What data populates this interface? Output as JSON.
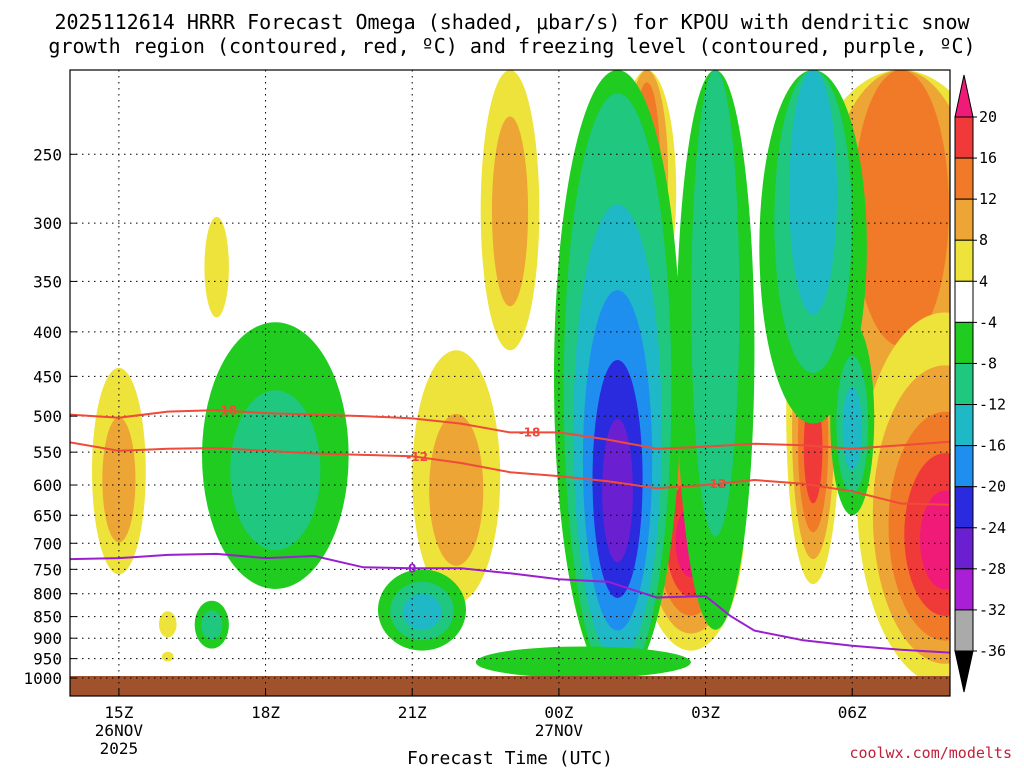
{
  "chart_data": {
    "type": "heatmap",
    "title_line1": "2025112614 HRRR Forecast Omega (shaded, μbar/s) for KPOU with dendritic snow",
    "title_line2": "growth region (contoured, red, ºC) and freezing level (contoured, purple, ºC)",
    "xlabel": "Forecast Time (UTC)",
    "credit": "coolwx.com/modelts",
    "y_ticks": [
      250,
      300,
      350,
      400,
      450,
      500,
      550,
      600,
      650,
      700,
      750,
      800,
      850,
      900,
      950,
      1000
    ],
    "x_ticks": [
      {
        "hour": 15,
        "label": "15Z",
        "date": "26NOV",
        "year": "2025"
      },
      {
        "hour": 18,
        "label": "18Z",
        "date": "",
        "year": ""
      },
      {
        "hour": 21,
        "label": "21Z",
        "date": "",
        "year": ""
      },
      {
        "hour": 24,
        "label": "00Z",
        "date": "27NOV",
        "year": ""
      },
      {
        "hour": 27,
        "label": "03Z",
        "date": "",
        "year": ""
      },
      {
        "hour": 30,
        "label": "06Z",
        "date": "",
        "year": ""
      }
    ],
    "xlim": [
      14,
      32
    ],
    "ylim": [
      1000,
      200
    ],
    "y_scale": "log-pressure",
    "grid": true,
    "colorbar": {
      "labels": [
        "20",
        "16",
        "12",
        "8",
        "4",
        "-4",
        "-8",
        "-12",
        "-16",
        "-20",
        "-24",
        "-28",
        "-32",
        "-36"
      ],
      "colors": [
        "#f01a78",
        "#f03a3a",
        "#f07a28",
        "#eda535",
        "#ede33a",
        "#ffffff",
        "#1fcc1f",
        "#1fc77f",
        "#1fb8c7",
        "#1f8fef",
        "#2a2adf",
        "#6a1fd1",
        "#a81fd6",
        "#aaaaaa"
      ]
    },
    "dgz_contours": [
      {
        "label": "-18",
        "color": "#f04a3a",
        "points": [
          [
            14,
            498
          ],
          [
            15,
            502
          ],
          [
            16,
            494
          ],
          [
            17,
            492
          ],
          [
            18,
            496
          ],
          [
            19,
            498
          ],
          [
            20,
            500
          ],
          [
            21,
            503
          ],
          [
            22,
            510
          ],
          [
            23,
            522
          ],
          [
            24,
            522
          ],
          [
            25,
            532
          ],
          [
            26,
            545
          ],
          [
            27,
            542
          ],
          [
            28,
            538
          ],
          [
            29,
            540
          ],
          [
            30,
            545
          ],
          [
            31,
            540
          ],
          [
            32,
            535
          ]
        ]
      },
      {
        "label": "-12",
        "color": "#f04a3a",
        "points": [
          [
            14,
            536
          ],
          [
            15,
            548
          ],
          [
            16,
            545
          ],
          [
            17,
            544
          ],
          [
            18,
            548
          ],
          [
            19,
            552
          ],
          [
            20,
            554
          ],
          [
            21,
            556
          ],
          [
            22,
            566
          ],
          [
            23,
            580
          ],
          [
            24,
            586
          ],
          [
            25,
            594
          ],
          [
            26,
            605
          ],
          [
            27,
            600
          ],
          [
            28,
            592
          ],
          [
            29,
            598
          ],
          [
            30,
            610
          ],
          [
            31,
            630
          ],
          [
            32,
            632
          ]
        ]
      }
    ],
    "freezing_level": {
      "label": "0",
      "color": "#9a1fd0",
      "points": [
        [
          14,
          730
        ],
        [
          15,
          728
        ],
        [
          16,
          722
        ],
        [
          17,
          720
        ],
        [
          18,
          728
        ],
        [
          19,
          724
        ],
        [
          20,
          746
        ],
        [
          21,
          748
        ],
        [
          22,
          748
        ],
        [
          23,
          758
        ],
        [
          24,
          770
        ],
        [
          25,
          775
        ],
        [
          26,
          808
        ],
        [
          27,
          805
        ],
        [
          27.5,
          848
        ],
        [
          28,
          882
        ],
        [
          29,
          905
        ],
        [
          30,
          918
        ],
        [
          31,
          928
        ],
        [
          32,
          935
        ]
      ]
    },
    "omega_blobs": [
      {
        "cx": 15,
        "cy": 600,
        "rx": 0.55,
        "ry": 160,
        "levels": [
          4,
          8
        ]
      },
      {
        "cx": 17,
        "cy": 340,
        "rx": 0.25,
        "ry": 45,
        "levels": [
          4
        ]
      },
      {
        "cx": 16,
        "cy": 868,
        "rx": 0.18,
        "ry": 30,
        "levels": [
          4
        ]
      },
      {
        "cx": 16,
        "cy": 945,
        "rx": 0.12,
        "ry": 12,
        "levels": [
          4
        ]
      },
      {
        "cx": 21.9,
        "cy": 620,
        "rx": 0.9,
        "ry": 200,
        "levels": [
          4,
          8
        ]
      },
      {
        "cx": 23,
        "cy": 300,
        "rx": 0.6,
        "ry": 120,
        "levels": [
          4,
          8
        ]
      },
      {
        "cx": 25.8,
        "cy": 260,
        "rx": 0.6,
        "ry": 120,
        "levels": [
          4,
          8,
          12
        ]
      },
      {
        "cx": 26.7,
        "cy": 700,
        "rx": 1.1,
        "ry": 230,
        "levels": [
          4,
          8,
          12,
          16,
          20
        ]
      },
      {
        "cx": 29.2,
        "cy": 550,
        "rx": 0.55,
        "ry": 230,
        "levels": [
          4,
          8,
          12,
          16
        ]
      },
      {
        "cx": 31,
        "cy": 300,
        "rx": 2.2,
        "ry": 260,
        "levels": [
          4,
          8,
          12
        ]
      },
      {
        "cx": 31.9,
        "cy": 700,
        "rx": 1.8,
        "ry": 320,
        "levels": [
          4,
          8,
          12,
          16,
          20
        ]
      }
    ],
    "omega_neg_blobs": [
      {
        "cx": 18.2,
        "cy": 590,
        "rx": 1.5,
        "ry": 200,
        "levels": [
          -4,
          -8
        ]
      },
      {
        "cx": 16.9,
        "cy": 870,
        "rx": 0.35,
        "ry": 55,
        "levels": [
          -4,
          -8
        ]
      },
      {
        "cx": 21.2,
        "cy": 840,
        "rx": 0.9,
        "ry": 90,
        "levels": [
          -4,
          -8,
          -12
        ]
      },
      {
        "cx": 25.2,
        "cy": 620,
        "rx": 1.3,
        "ry": 480,
        "levels": [
          -4,
          -8,
          -12,
          -16,
          -20,
          -24
        ]
      },
      {
        "cx": 27.2,
        "cy": 380,
        "rx": 0.8,
        "ry": 500,
        "levels": [
          -4,
          -8
        ]
      },
      {
        "cx": 29.2,
        "cy": 280,
        "rx": 1.1,
        "ry": 230,
        "levels": [
          -4,
          -8,
          -12
        ]
      },
      {
        "cx": 30,
        "cy": 520,
        "rx": 0.45,
        "ry": 130,
        "levels": [
          -4,
          -8,
          -12
        ]
      },
      {
        "cx": 24.5,
        "cy": 960,
        "rx": 2.2,
        "ry": 40,
        "levels": [
          -4
        ]
      }
    ]
  }
}
